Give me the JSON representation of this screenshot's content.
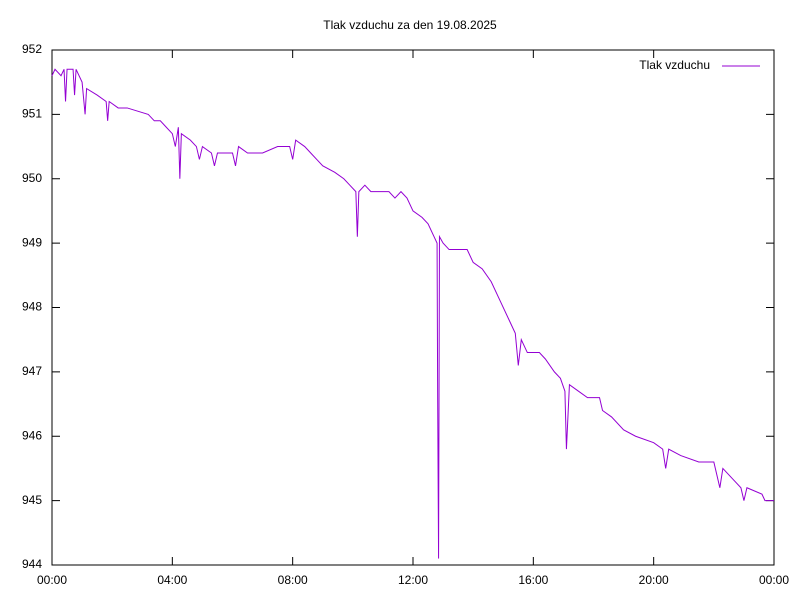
{
  "chart_data": {
    "type": "line",
    "title": "Tlak vzduchu za den 19.08.2025",
    "x": [
      0,
      0.1,
      0.3,
      0.4,
      0.45,
      0.5,
      0.7,
      0.75,
      0.8,
      1.0,
      1.1,
      1.15,
      1.5,
      1.8,
      1.85,
      1.9,
      2.2,
      2.5,
      3.2,
      3.4,
      3.6,
      3.8,
      4.0,
      4.1,
      4.2,
      4.25,
      4.3,
      4.6,
      4.8,
      4.9,
      5.0,
      5.3,
      5.4,
      5.5,
      6.0,
      6.1,
      6.2,
      6.5,
      7.0,
      7.5,
      7.9,
      8.0,
      8.1,
      8.4,
      8.6,
      8.8,
      9.0,
      9.4,
      9.7,
      9.9,
      10.1,
      10.15,
      10.2,
      10.4,
      10.6,
      11.2,
      11.4,
      11.6,
      11.8,
      12.0,
      12.3,
      12.5,
      12.7,
      12.8,
      12.82,
      12.85,
      12.88,
      13.0,
      13.2,
      13.8,
      14.0,
      14.3,
      14.6,
      14.9,
      15.2,
      15.4,
      15.5,
      15.6,
      15.8,
      16.2,
      16.4,
      16.7,
      16.9,
      17.05,
      17.1,
      17.2,
      17.5,
      17.8,
      18.2,
      18.3,
      18.6,
      19.0,
      19.4,
      20.0,
      20.3,
      20.4,
      20.5,
      20.9,
      21.5,
      22.0,
      22.2,
      22.3,
      22.7,
      22.9,
      23.0,
      23.1,
      23.6,
      23.7,
      24.0
    ],
    "series": [
      {
        "name": "Tlak vzduchu",
        "color": "#9400d3",
        "values": [
          951.6,
          951.7,
          951.6,
          951.7,
          951.2,
          951.7,
          951.7,
          951.3,
          951.7,
          951.5,
          951.0,
          951.4,
          951.3,
          951.2,
          950.9,
          951.2,
          951.1,
          951.1,
          951.0,
          950.9,
          950.9,
          950.8,
          950.7,
          950.5,
          950.8,
          950.0,
          950.7,
          950.6,
          950.5,
          950.3,
          950.5,
          950.4,
          950.2,
          950.4,
          950.4,
          950.2,
          950.5,
          950.4,
          950.4,
          950.5,
          950.5,
          950.3,
          950.6,
          950.5,
          950.4,
          950.3,
          950.2,
          950.1,
          950.0,
          949.9,
          949.8,
          949.1,
          949.8,
          949.9,
          949.8,
          949.8,
          949.7,
          949.8,
          949.7,
          949.5,
          949.4,
          949.3,
          949.1,
          949.0,
          946.6,
          944.1,
          949.1,
          949.0,
          948.9,
          948.9,
          948.7,
          948.6,
          948.4,
          948.1,
          947.8,
          947.6,
          947.1,
          947.5,
          947.3,
          947.3,
          947.2,
          947.0,
          946.9,
          946.7,
          945.8,
          946.8,
          946.7,
          946.6,
          946.6,
          946.4,
          946.3,
          946.1,
          946.0,
          945.9,
          945.8,
          945.5,
          945.8,
          945.7,
          945.6,
          945.6,
          945.2,
          945.5,
          945.3,
          945.2,
          945.0,
          945.2,
          945.1,
          945.0,
          945.0
        ]
      }
    ],
    "xlim": [
      0,
      24
    ],
    "xticks": [
      {
        "value": 0,
        "label": "00:00"
      },
      {
        "value": 4,
        "label": "04:00"
      },
      {
        "value": 8,
        "label": "08:00"
      },
      {
        "value": 12,
        "label": "12:00"
      },
      {
        "value": 16,
        "label": "16:00"
      },
      {
        "value": 20,
        "label": "20:00"
      },
      {
        "value": 24,
        "label": "00:00"
      }
    ],
    "ylim": [
      944,
      952
    ],
    "yticks": [
      944,
      945,
      946,
      947,
      948,
      949,
      950,
      951,
      952
    ],
    "legend": "top-right"
  }
}
